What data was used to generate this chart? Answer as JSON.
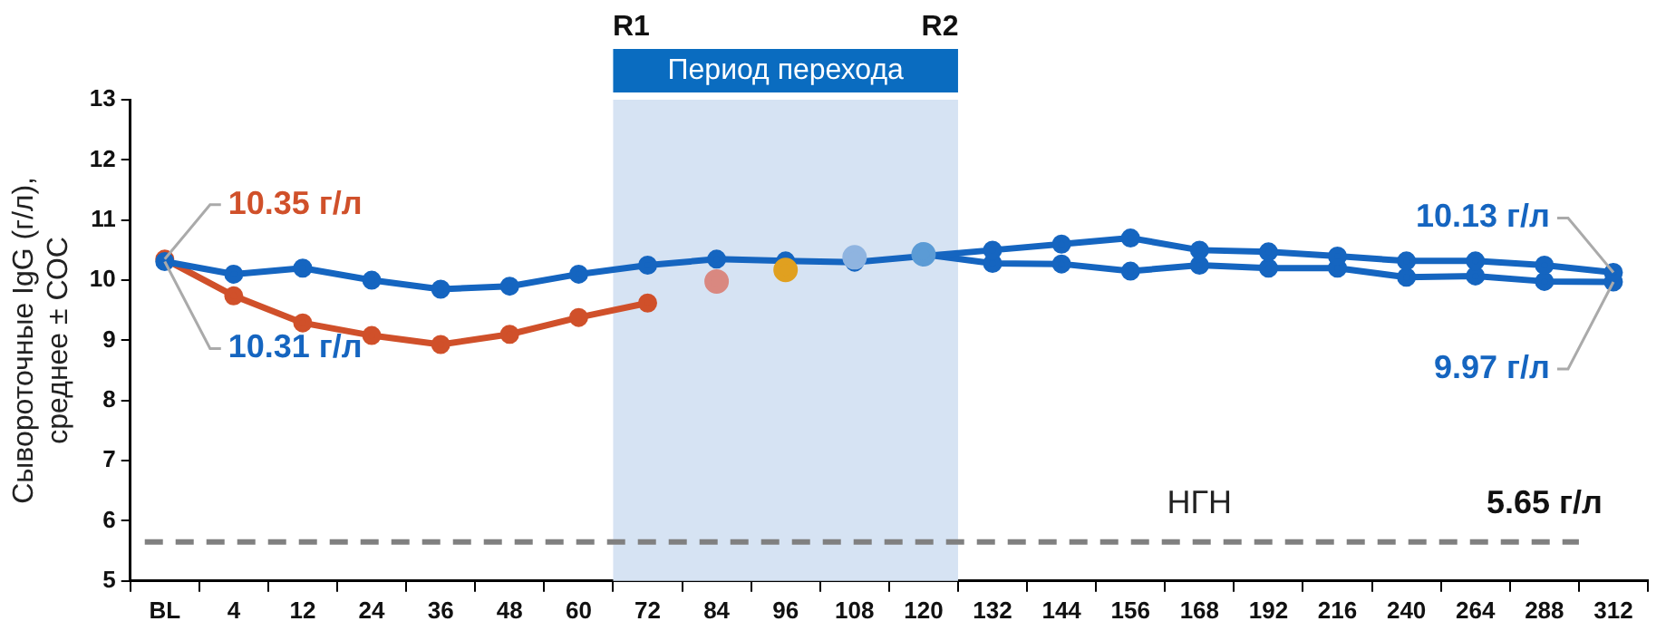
{
  "chart_data": {
    "type": "line",
    "ylabel": "Сывороточные IgG (г/л), среднее ± СОС",
    "categories": [
      "BL",
      "4",
      "12",
      "24",
      "36",
      "48",
      "60",
      "72",
      "84",
      "96",
      "108",
      "120",
      "132",
      "144",
      "156",
      "168",
      "192",
      "216",
      "240",
      "264",
      "288",
      "312"
    ],
    "series": [
      {
        "color": "#1565c0",
        "values": [
          10.31,
          10.1,
          10.2,
          10.0,
          9.85,
          9.9,
          10.1,
          10.25,
          10.35,
          10.32,
          10.3,
          10.4,
          10.5,
          10.6,
          10.7,
          10.5,
          10.47,
          10.4,
          10.32,
          10.32,
          10.25,
          10.13
        ],
        "value_labels": [
          "10.31 г/л",
          null,
          null,
          null,
          null,
          null,
          null,
          null,
          null,
          null,
          null,
          null,
          null,
          null,
          null,
          null,
          null,
          null,
          null,
          null,
          null,
          "10.13 г/л"
        ]
      },
      {
        "color": "#d0502a",
        "values": [
          10.35,
          9.74,
          9.29,
          9.08,
          8.93,
          9.1,
          9.38,
          9.62,
          null,
          null,
          null,
          null,
          null,
          null,
          null,
          null,
          null,
          null,
          null,
          null,
          null,
          null
        ],
        "value_labels": [
          "10.35 г/л",
          null,
          null,
          null,
          null,
          null,
          null,
          null,
          null,
          null,
          null,
          null,
          null,
          null,
          null,
          null,
          null,
          null,
          null,
          null,
          null,
          null
        ]
      },
      {
        "type": "scatter",
        "colors": [
          null,
          null,
          null,
          null,
          null,
          null,
          null,
          null,
          "#d98880",
          "#e0a020",
          "#8fb4e0",
          "#5b9bd5",
          null,
          null,
          null,
          null,
          null,
          null,
          null,
          null,
          null,
          null
        ],
        "values": [
          null,
          null,
          null,
          null,
          null,
          null,
          null,
          null,
          9.98,
          10.17,
          10.38,
          10.43,
          null,
          null,
          null,
          null,
          null,
          null,
          null,
          null,
          null,
          null
        ]
      },
      {
        "color": "#1565c0",
        "values": [
          null,
          null,
          null,
          null,
          null,
          null,
          null,
          null,
          null,
          null,
          null,
          10.43,
          10.28,
          10.27,
          10.15,
          10.25,
          10.2,
          10.2,
          10.05,
          10.07,
          9.98,
          9.97
        ],
        "value_labels": [
          null,
          null,
          null,
          null,
          null,
          null,
          null,
          null,
          null,
          null,
          null,
          null,
          null,
          null,
          null,
          null,
          null,
          null,
          null,
          null,
          null,
          "9.97 г/л"
        ]
      }
    ],
    "ylim": [
      5,
      13
    ],
    "yticks": [
      5,
      6,
      7,
      8,
      9,
      10,
      11,
      12,
      13
    ],
    "grid": false,
    "legend": false,
    "marker": "circle",
    "line_style": "solid",
    "bands": [
      {
        "axis": "x",
        "from": "72",
        "to": "120",
        "label": "Период перехода",
        "color": "#d6e3f3"
      }
    ],
    "ref_lines": [
      {
        "axis": "y",
        "value": 5.65,
        "label": "НГН",
        "color": "#808080",
        "line_style": "dashed"
      }
    ],
    "annotations": [
      "R1",
      "R2",
      {
        "text": "5.65 г/л",
        "x": "288",
        "y": 5.65
      }
    ]
  }
}
